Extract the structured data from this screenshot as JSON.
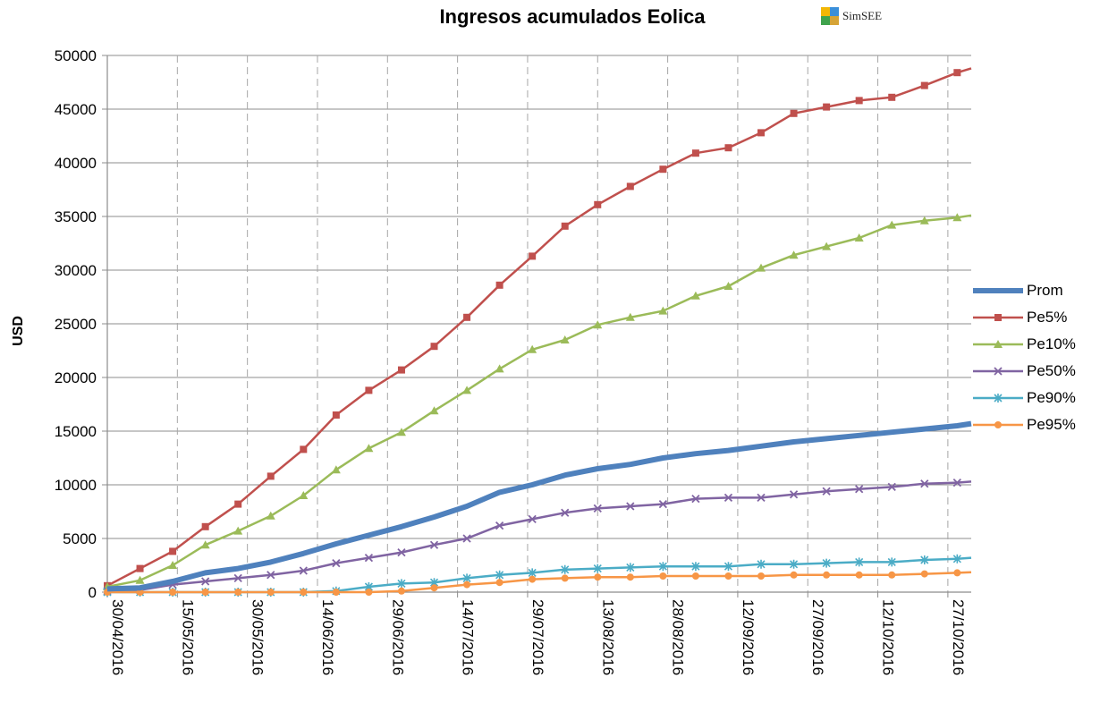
{
  "chart_data": {
    "type": "line",
    "title": "Ingresos acumulados Eolica",
    "logo_text": "SimSEE",
    "ylabel": "USD",
    "xlabel": "",
    "ylim": [
      0,
      50000
    ],
    "y_ticks": [
      0,
      5000,
      10000,
      15000,
      20000,
      25000,
      30000,
      35000,
      40000,
      45000,
      50000
    ],
    "x_range": [
      "2016-04-30",
      "2016-11-01"
    ],
    "x_ticks": [
      "30/04/2016",
      "15/05/2016",
      "30/05/2016",
      "14/06/2016",
      "29/06/2016",
      "14/07/2016",
      "29/07/2016",
      "13/08/2016",
      "28/08/2016",
      "12/09/2016",
      "27/09/2016",
      "12/10/2016",
      "27/10/2016"
    ],
    "x_tick_dates": [
      "2016-04-30",
      "2016-05-15",
      "2016-05-30",
      "2016-06-14",
      "2016-06-29",
      "2016-07-14",
      "2016-07-29",
      "2016-08-13",
      "2016-08-28",
      "2016-09-12",
      "2016-09-27",
      "2016-10-12",
      "2016-10-27"
    ],
    "grid": {
      "horizontal": true,
      "vertical_dashed": true
    },
    "legend_position": "right",
    "x": [
      "2016-04-30",
      "2016-05-07",
      "2016-05-14",
      "2016-05-21",
      "2016-05-28",
      "2016-06-04",
      "2016-06-11",
      "2016-06-18",
      "2016-06-25",
      "2016-07-02",
      "2016-07-09",
      "2016-07-16",
      "2016-07-23",
      "2016-07-30",
      "2016-08-06",
      "2016-08-13",
      "2016-08-20",
      "2016-08-27",
      "2016-09-03",
      "2016-09-10",
      "2016-09-17",
      "2016-09-24",
      "2016-10-01",
      "2016-10-08",
      "2016-10-15",
      "2016-10-22",
      "2016-10-29"
    ],
    "x_end": "2016-11-01",
    "series": [
      {
        "name": "Prom",
        "color": "#4F81BD",
        "marker": "dash",
        "width": 6,
        "values": [
          300,
          400,
          1000,
          1800,
          2200,
          2800,
          3600,
          4500,
          5300,
          6100,
          7000,
          8000,
          9300,
          10000,
          10900,
          11500,
          11900,
          12500,
          12900,
          13200,
          13600,
          14000,
          14300,
          14600,
          14900,
          15200,
          15500
        ],
        "end_value": 15700
      },
      {
        "name": "Pe5%",
        "color": "#C0504D",
        "marker": "square",
        "width": 2.5,
        "values": [
          600,
          2200,
          3800,
          6100,
          8200,
          10800,
          13300,
          16500,
          18800,
          20700,
          22900,
          25600,
          28600,
          31300,
          34100,
          36100,
          37800,
          39400,
          40900,
          41400,
          42800,
          44600,
          45200,
          45800,
          46100,
          47200,
          48400
        ],
        "end_value": 48800
      },
      {
        "name": "Pe10%",
        "color": "#9BBB59",
        "marker": "triangle",
        "width": 2.5,
        "values": [
          500,
          1100,
          2500,
          4400,
          5700,
          7100,
          9000,
          11400,
          13400,
          14900,
          16900,
          18800,
          20800,
          22600,
          23500,
          24900,
          25600,
          26200,
          27600,
          28500,
          30200,
          31400,
          32200,
          33000,
          34200,
          34600,
          34900
        ],
        "end_value": 35100
      },
      {
        "name": "Pe50%",
        "color": "#8064A2",
        "marker": "x",
        "width": 2.5,
        "values": [
          100,
          200,
          700,
          1000,
          1300,
          1600,
          2000,
          2700,
          3200,
          3700,
          4400,
          5000,
          6200,
          6800,
          7400,
          7800,
          8000,
          8200,
          8700,
          8800,
          8800,
          9100,
          9400,
          9600,
          9800,
          10100,
          10200
        ],
        "end_value": 10300
      },
      {
        "name": "Pe90%",
        "color": "#4BACC6",
        "marker": "star",
        "width": 2.5,
        "values": [
          0,
          0,
          0,
          0,
          0,
          0,
          0,
          100,
          500,
          800,
          900,
          1300,
          1600,
          1800,
          2100,
          2200,
          2300,
          2400,
          2400,
          2400,
          2600,
          2600,
          2700,
          2800,
          2800,
          3000,
          3100
        ],
        "end_value": 3200
      },
      {
        "name": "Pe95%",
        "color": "#F79646",
        "marker": "circle",
        "width": 2.5,
        "values": [
          0,
          0,
          0,
          0,
          0,
          0,
          0,
          0,
          0,
          100,
          400,
          700,
          900,
          1200,
          1300,
          1400,
          1400,
          1500,
          1500,
          1500,
          1500,
          1600,
          1600,
          1600,
          1600,
          1700,
          1800
        ],
        "end_value": 1850
      }
    ]
  }
}
